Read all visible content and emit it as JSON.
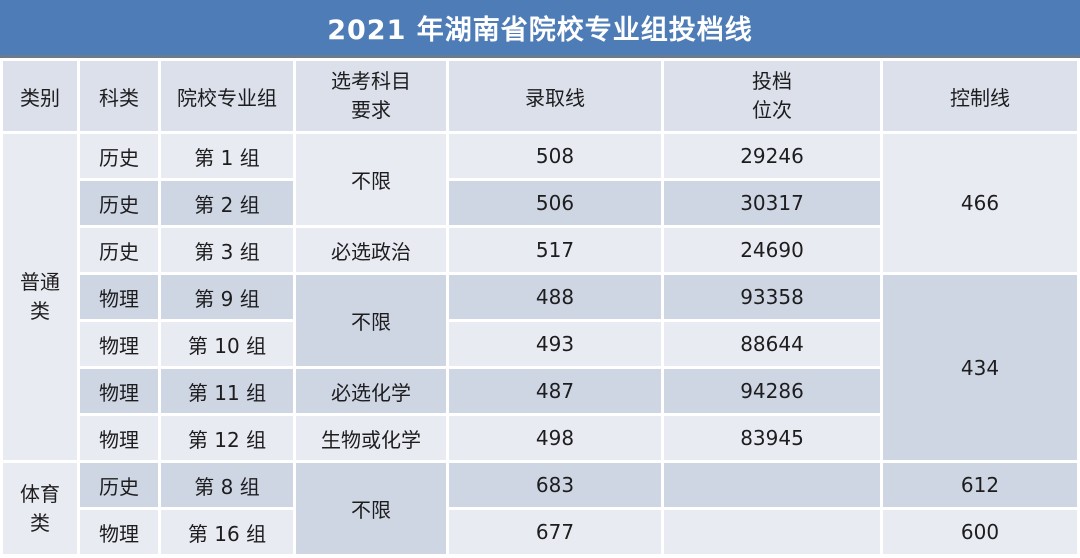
{
  "title": "2021 年湖南省院校专业组投档线",
  "colors": {
    "title_bg": "#4E7CB7",
    "title_border": "#6B7A8D",
    "header_bg": "#DCE0EA",
    "row_light": "#E9EBF2",
    "row_dark": "#CFD6E3",
    "text": "#1D1D1F",
    "title_text": "#FFFFFF"
  },
  "table": {
    "header": {
      "category": "类别",
      "subject": "科类",
      "group": "院校专业组",
      "elective_line1": "选考科目",
      "elective_line2": "要求",
      "admission": "录取线",
      "rank_line1": "投档",
      "rank_line2": "位次",
      "control": "控制线"
    },
    "categories": [
      {
        "line1": "普通",
        "line2": "类"
      },
      {
        "line1": "体育",
        "line2": "类"
      }
    ],
    "rows": [
      {
        "subject": "历史",
        "group": "第 1 组",
        "elective": "不限",
        "admission": "508",
        "rank": "29246",
        "control": "466"
      },
      {
        "subject": "历史",
        "group": "第 2 组",
        "admission": "506",
        "rank": "30317"
      },
      {
        "subject": "历史",
        "group": "第 3 组",
        "elective": "必选政治",
        "admission": "517",
        "rank": "24690"
      },
      {
        "subject": "物理",
        "group": "第 9 组",
        "elective": "不限",
        "admission": "488",
        "rank": "93358",
        "control": "434"
      },
      {
        "subject": "物理",
        "group": "第 10 组",
        "admission": "493",
        "rank": "88644"
      },
      {
        "subject": "物理",
        "group": "第 11 组",
        "elective": "必选化学",
        "admission": "487",
        "rank": "94286"
      },
      {
        "subject": "物理",
        "group": "第 12 组",
        "elective": "生物或化学",
        "admission": "498",
        "rank": "83945"
      },
      {
        "subject": "历史",
        "group": "第 8 组",
        "elective": "不限",
        "admission": "683",
        "rank": "",
        "control": "612"
      },
      {
        "subject": "物理",
        "group": "第 16 组",
        "admission": "677",
        "rank": "",
        "control": "600"
      }
    ]
  },
  "chart_data": {
    "type": "table",
    "title": "2021 年湖南省院校专业组投档线",
    "columns": [
      "类别",
      "科类",
      "院校专业组",
      "选考科目要求",
      "录取线",
      "投档位次",
      "控制线"
    ],
    "rows": [
      [
        "普通类",
        "历史",
        "第 1 组",
        "不限",
        "508",
        "29246",
        "466"
      ],
      [
        "普通类",
        "历史",
        "第 2 组",
        "不限",
        "506",
        "30317",
        "466"
      ],
      [
        "普通类",
        "历史",
        "第 3 组",
        "必选政治",
        "517",
        "24690",
        "466"
      ],
      [
        "普通类",
        "物理",
        "第 9 组",
        "不限",
        "488",
        "93358",
        "434"
      ],
      [
        "普通类",
        "物理",
        "第 10 组",
        "不限",
        "493",
        "88644",
        "434"
      ],
      [
        "普通类",
        "物理",
        "第 11 组",
        "必选化学",
        "487",
        "94286",
        "434"
      ],
      [
        "普通类",
        "物理",
        "第 12 组",
        "生物或化学",
        "498",
        "83945",
        "434"
      ],
      [
        "体育类",
        "历史",
        "第 8 组",
        "不限",
        "683",
        "",
        "612"
      ],
      [
        "体育类",
        "物理",
        "第 16 组",
        "不限",
        "677",
        "",
        "600"
      ]
    ]
  }
}
